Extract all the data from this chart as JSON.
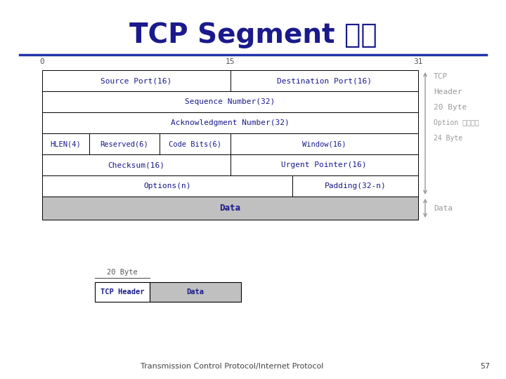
{
  "title": "TCP Segment 형식",
  "title_color": "#1a1a8c",
  "title_fontsize": 28,
  "bg_color": "#ffffff",
  "line_color": "#2233aa",
  "footer_text": "Transmission Control Protocol/Internet Protocol",
  "footer_page": "57",
  "dark_blue": "#1a1a8c",
  "gray_text": "#999999",
  "black": "#000000",
  "gray_fill": "#c0c0c0",
  "right_labels": [
    "TCP",
    "Header",
    "20 Byte",
    "Option 포함하면",
    "24 Byte"
  ],
  "bottom_label_20byte": "20 Byte",
  "bottom_cell1": "TCP Header",
  "bottom_cell2": "Data",
  "data_label": "Data"
}
